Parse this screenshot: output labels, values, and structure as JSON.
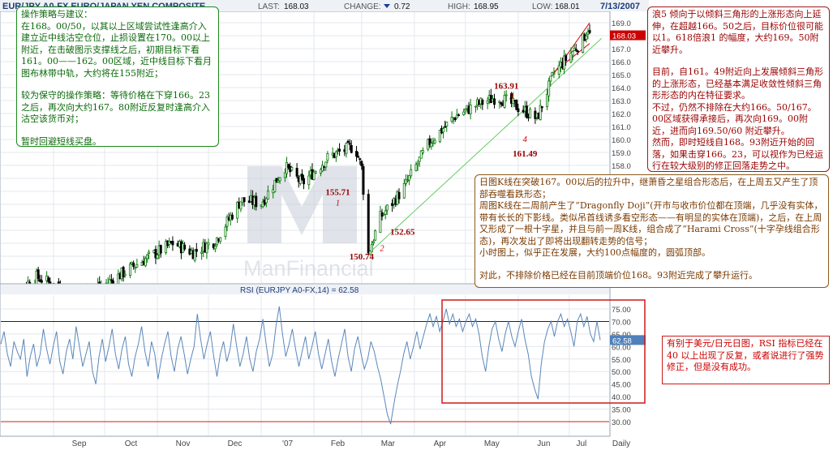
{
  "header": {
    "symbol": "EURJPY A0-FX",
    "title": "EUR/JPY A0-FX EURO/JAPAN YEN COMPOSITE",
    "last_label": "LAST:",
    "last_value": "168.03",
    "change_label": "CHANGE:",
    "change_value": "0.72",
    "high_label": "HIGH:",
    "high_value": "168.95",
    "low_label": "LOW:",
    "low_value": "168.01",
    "date": "7/13/2007"
  },
  "watermark": "ManFinancial",
  "colors": {
    "up_candle": "#0a7a0a",
    "down_candle": "#000000",
    "trendline": "#66cc66",
    "channel": "#cc0000",
    "rsi_line": "#5b87b8",
    "price_marker": "#cc0000",
    "rsi_marker": "#4f81bd"
  },
  "chart_data": [
    {
      "type": "candlestick",
      "title": "EUR/JPY A0-FX EURO/JAPAN YEN COMPOSITE",
      "ylim": [
        149.0,
        170.0
      ],
      "y_ticks": [
        150.0,
        151.0,
        152.0,
        153.0,
        154.0,
        155.0,
        156.0,
        157.0,
        158.0,
        159.0,
        160.0,
        161.0,
        162.0,
        163.0,
        164.0,
        165.0,
        166.0,
        167.0,
        168.0,
        169.0
      ],
      "x_tick_labels": [
        "Sep",
        "Oct",
        "Nov",
        "Dec",
        "'07",
        "Feb",
        "Mar",
        "Apr",
        "May",
        "Jun",
        "Jul",
        "Daily"
      ],
      "last_price": "168.03",
      "key_points": [
        {
          "date": "2006-08-01",
          "close": 147.6
        },
        {
          "date": "2006-08-22",
          "close": 149.4
        },
        {
          "date": "2006-09-10",
          "close": 148.3
        },
        {
          "date": "2006-10-01",
          "close": 148.8
        },
        {
          "date": "2006-10-20",
          "close": 150.4
        },
        {
          "date": "2006-11-10",
          "close": 152.0
        },
        {
          "date": "2006-11-22",
          "close": 151.3
        },
        {
          "date": "2006-12-05",
          "close": 152.2
        },
        {
          "date": "2006-12-20",
          "close": 155.3
        },
        {
          "date": "2007-01-01",
          "close": 155.1
        },
        {
          "date": "2007-01-15",
          "close": 157.9
        },
        {
          "date": "2007-01-25",
          "close": 156.6
        },
        {
          "date": "2007-02-10",
          "close": 158.7
        },
        {
          "date": "2007-02-25",
          "close": 159.5
        },
        {
          "date": "2007-03-01",
          "close": 157.8
        },
        {
          "date": "2007-03-05",
          "close": 151.2
        },
        {
          "date": "2007-03-12",
          "close": 154.0
        },
        {
          "date": "2007-03-25",
          "close": 156.1
        },
        {
          "date": "2007-04-10",
          "close": 159.8
        },
        {
          "date": "2007-04-25",
          "close": 161.8
        },
        {
          "date": "2007-05-08",
          "close": 162.7
        },
        {
          "date": "2007-05-20",
          "close": 163.3
        },
        {
          "date": "2007-06-05",
          "close": 162.2
        },
        {
          "date": "2007-06-12",
          "close": 161.6
        },
        {
          "date": "2007-06-22",
          "close": 165.1
        },
        {
          "date": "2007-07-01",
          "close": 166.5
        },
        {
          "date": "2007-07-09",
          "close": 167.7
        },
        {
          "date": "2007-07-12",
          "close": 168.6
        },
        {
          "date": "2007-07-13",
          "close": 168.03
        }
      ],
      "annotations": [
        {
          "text": "155.71",
          "date": "2007-02-15",
          "price": 155.71,
          "color": "#990000"
        },
        {
          "text": "1",
          "date": "2007-02-15",
          "price": 154.9,
          "color": "#cc0000"
        },
        {
          "text": "152.65",
          "date": "2007-03-25",
          "price": 152.65,
          "color": "#990000"
        },
        {
          "text": "2",
          "date": "2007-03-13",
          "price": 151.4,
          "color": "#cc0000"
        },
        {
          "text": "150.74",
          "date": "2007-03-01",
          "price": 150.74,
          "color": "#990000"
        },
        {
          "text": "163.91",
          "date": "2007-05-25",
          "price": 163.91,
          "color": "#990000"
        },
        {
          "text": "3",
          "date": "2007-05-28",
          "price": 163.1,
          "color": "#cc0000"
        },
        {
          "text": "4",
          "date": "2007-06-05",
          "price": 159.8,
          "color": "#cc0000"
        },
        {
          "text": "161.49",
          "date": "2007-06-05",
          "price": 158.7,
          "color": "#990000"
        }
      ],
      "trendlines": [
        {
          "color": "#66cc66",
          "from": {
            "date": "2007-03-05",
            "price": 151.2
          },
          "to": {
            "date": "2007-07-20",
            "price": 167.8
          }
        },
        {
          "color": "#cc0000",
          "from": {
            "date": "2007-06-22",
            "price": 165.1
          },
          "to": {
            "date": "2007-07-13",
            "price": 169.0
          }
        },
        {
          "color": "#cc0000",
          "from": {
            "date": "2007-06-22",
            "price": 165.2
          },
          "to": {
            "date": "2007-07-13",
            "price": 167.4
          }
        }
      ]
    },
    {
      "type": "line",
      "title": "RSI (EURJPY A0-FX,14) = 62.58",
      "ylim": [
        25.0,
        82.0
      ],
      "y_ticks": [
        30.0,
        35.0,
        40.0,
        45.0,
        50.0,
        55.0,
        60.0,
        65.0,
        70.0,
        75.0
      ],
      "reference_lines": [
        70.0,
        30.0
      ],
      "last_value": "62.58",
      "series": [
        {
          "values": [
            61,
            66,
            57,
            52,
            62,
            58,
            55,
            63,
            48,
            56,
            61,
            52,
            57,
            67,
            59,
            53,
            60,
            66,
            54,
            49,
            58,
            63,
            55,
            68,
            60,
            52,
            57,
            62,
            50,
            45,
            56,
            63,
            54,
            60,
            67,
            57,
            51,
            59,
            64,
            53,
            48,
            56,
            61,
            68,
            58,
            52,
            62,
            57,
            47,
            55,
            61,
            66,
            56,
            50,
            59,
            64,
            57,
            49,
            55,
            60,
            73,
            63,
            55,
            61,
            66,
            56,
            48,
            57,
            62,
            54,
            59,
            69,
            60,
            52,
            57,
            64,
            55,
            50,
            58,
            63,
            71,
            61,
            52,
            57,
            68,
            76,
            65,
            56,
            61,
            67,
            59,
            52,
            58,
            64,
            55,
            60,
            66,
            57,
            51,
            57,
            63,
            54,
            48,
            55,
            61,
            67,
            56,
            50,
            59,
            64,
            57,
            51,
            55,
            62,
            58,
            52,
            47,
            40,
            33,
            29,
            37,
            44,
            50,
            57,
            62,
            55,
            60,
            66,
            59,
            64,
            69,
            73,
            68,
            72,
            66,
            70,
            75,
            69,
            73,
            68,
            71,
            66,
            70,
            73,
            68,
            71,
            65,
            56,
            50,
            60,
            67,
            70,
            63,
            58,
            65,
            70,
            64,
            60,
            66,
            71,
            63,
            57,
            48,
            43,
            39,
            53,
            62,
            67,
            70,
            64,
            70,
            73,
            68,
            71,
            66,
            60,
            70,
            73,
            68,
            72,
            65,
            62,
            70,
            62.58
          ]
        }
      ],
      "annotation_box": "red rectangle from late March to mid July"
    }
  ],
  "boxes": {
    "strategy": {
      "p1": "操作策略与建议：\n在168。00/50，以其以上区域尝试性逢高介入建立近中线沽空仓位，止损设置在170。00以上附近，在击破图示支撑线之后，初期目标下看161。00——162。00区域，近中线目标下看月图布林带中轨，大约将在155附近；",
      "p2": "较为保守的操作策略：等待价格在下穿166。23之后，再次向大约167。80附近反复时逢高介入沽空该货币对；",
      "p3": "暂时回避短线买盘。"
    },
    "wave": {
      "p1": "浪5 倾向于以倾斜三角形的上涨形态向上延伸，在超越166。50之后，目标价位很可能以1。618倍浪1 的幅度，大约169。50附近攀升。",
      "p2": "目前，自161。49附近向上发展倾斜三角形的上涨形态，已经基本满足收敛性倾斜三角形形态的内在特征要求。\n不过，仍然不排除在大约166。50/167。00区域获得承接后，再次向169。00附近，进而向169.50/60 附近攀升。\n然而，即时短线自168。93附近开始的回落，如果击穿166。23，可以视作为已经运行在较大级别的修正回落走势之中。"
    },
    "daily": {
      "p1": "日图K线在突破167。00以后的拉升中，继萧昏之星组合形态后，在上周五又产生了顶部吞噬看跌形态；\n周图K线在二周前产生了“Dragonfly Doji”(开市与收市价位都在顶端，几乎没有实体，带有长长的下影线。类似吊首线诱多看空形态——有明显的实体在顶端)，之后，在上周又形成了一根十字星，并且与前一周K线，组合成了“Harami Cross”(十字孕线组合形态)，再次发出了即将出现翻转走势的信号；\n小时图上，似乎正在发展，大约100点幅度的，圆弧顶部。",
      "p2": "对此，不排除价格已经在目前顶端价位168。93附近完成了攀升运行。"
    },
    "rsi_note": "有别于美元/日元日图，RSI 指标已经在 40 以上出现了反复，或者说进行了强势修正，但是没有成功。"
  }
}
